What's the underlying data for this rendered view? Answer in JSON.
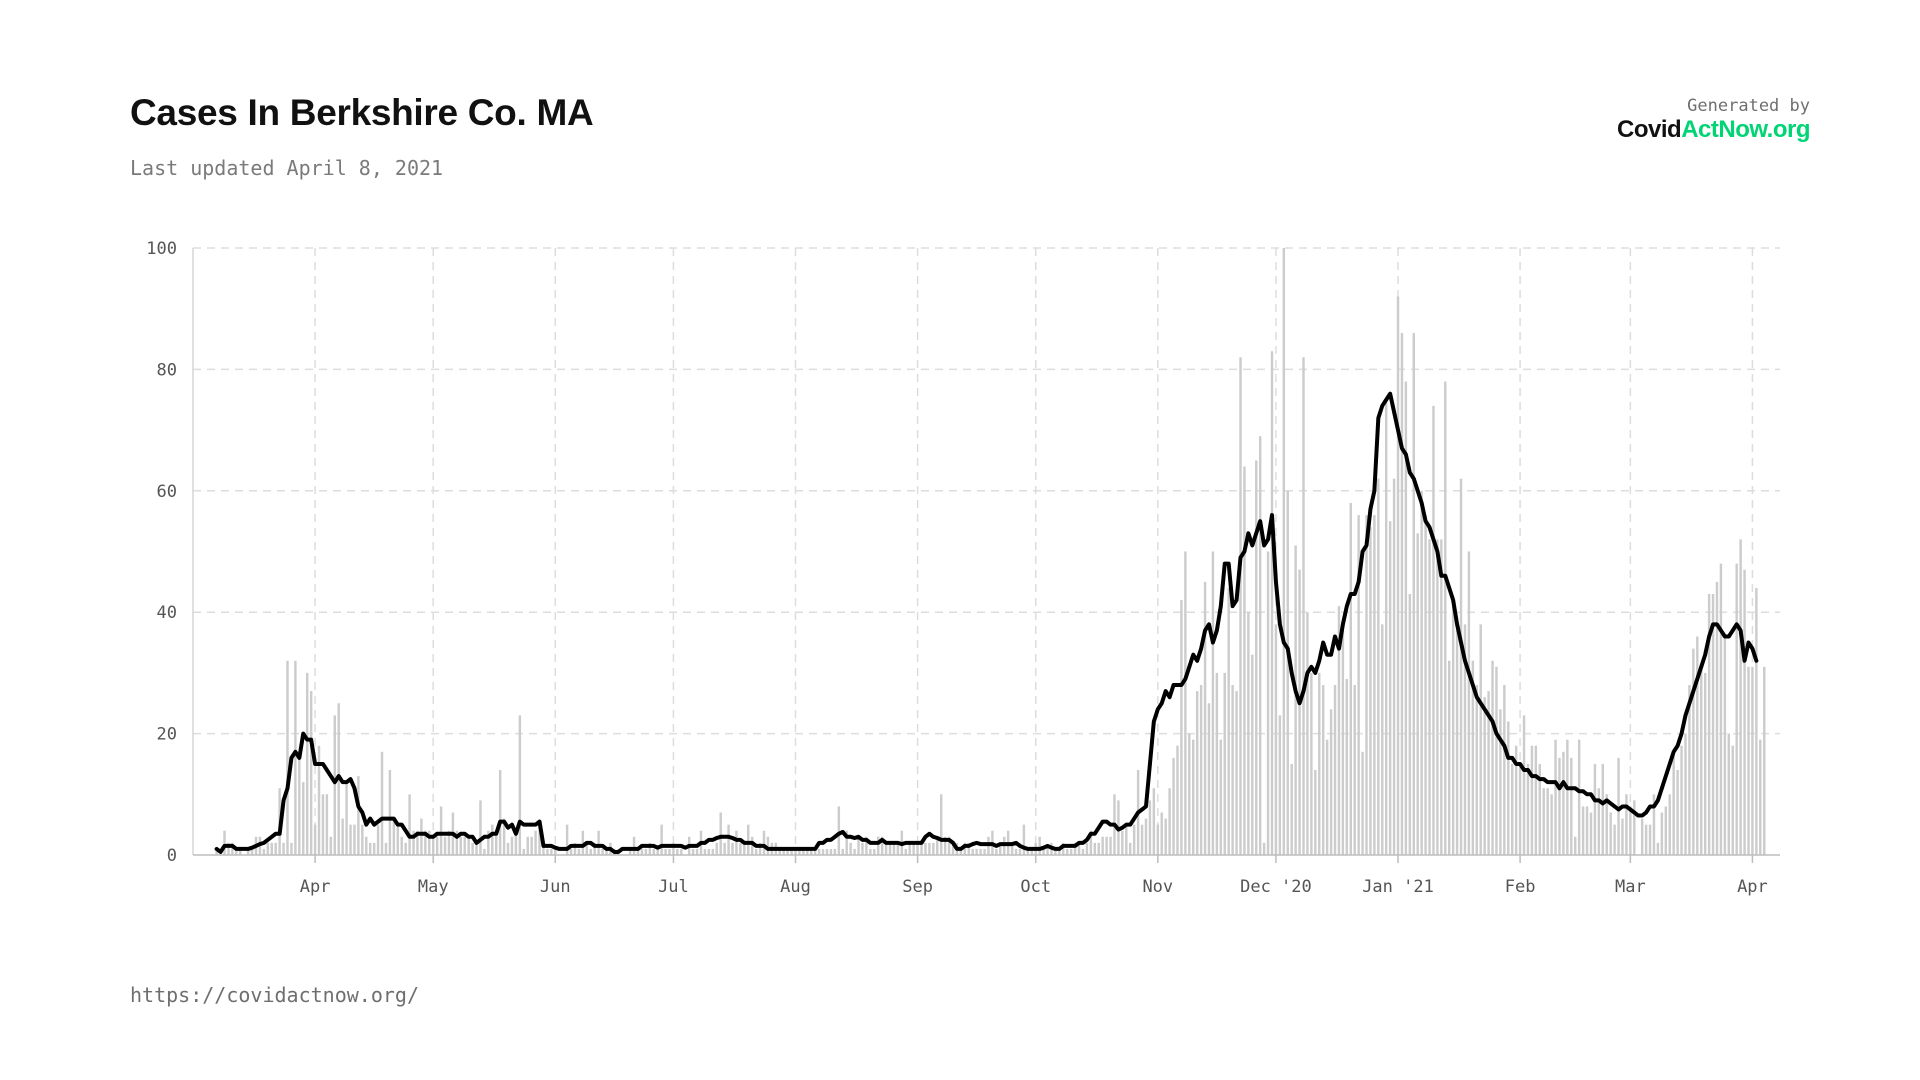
{
  "header": {
    "title": "Cases In Berkshire Co. MA",
    "updated": "Last updated April 8, 2021"
  },
  "brand": {
    "generated_by": "Generated by",
    "name_part1": "Covid",
    "name_part2": "ActNow.org"
  },
  "footer": {
    "source_url": "https://covidactnow.org/"
  },
  "colors": {
    "bar": "#cccccc",
    "line": "#000000",
    "grid": "#dddddd",
    "brand_accent": "#00d474"
  },
  "chart_data": {
    "type": "bar",
    "title": "Cases In Berkshire Co. MA",
    "xlabel": "",
    "ylabel": "",
    "x_range": [
      "2020-03-01",
      "2021-04-08"
    ],
    "ylim": [
      0,
      100
    ],
    "grid": true,
    "legend": "none",
    "y_ticks": [
      0,
      20,
      40,
      60,
      80,
      100
    ],
    "x_ticks": [
      {
        "date": "2020-04-01",
        "label": "Apr"
      },
      {
        "date": "2020-05-01",
        "label": "May"
      },
      {
        "date": "2020-06-01",
        "label": "Jun"
      },
      {
        "date": "2020-07-01",
        "label": "Jul"
      },
      {
        "date": "2020-08-01",
        "label": "Aug"
      },
      {
        "date": "2020-09-01",
        "label": "Sep"
      },
      {
        "date": "2020-10-01",
        "label": "Oct"
      },
      {
        "date": "2020-11-01",
        "label": "Nov"
      },
      {
        "date": "2020-12-01",
        "label": "Dec '20"
      },
      {
        "date": "2021-01-01",
        "label": "Jan '21"
      },
      {
        "date": "2021-02-01",
        "label": "Feb"
      },
      {
        "date": "2021-03-01",
        "label": "Mar"
      },
      {
        "date": "2021-04-01",
        "label": "Apr"
      }
    ],
    "series": [
      {
        "kind": "bars",
        "start_date": "2020-03-07",
        "values": [
          1,
          0,
          4,
          2,
          2,
          1,
          1,
          0,
          1,
          1,
          3,
          3,
          1,
          2,
          2,
          2,
          11,
          2,
          32,
          2,
          32,
          16,
          12,
          30,
          27,
          5,
          18,
          10,
          10,
          3,
          23,
          25,
          6,
          12,
          5,
          5,
          13,
          5,
          3,
          2,
          2,
          5,
          17,
          2,
          14,
          6,
          5,
          3,
          2,
          10,
          4,
          4,
          6,
          4,
          4,
          3,
          3,
          8,
          3,
          4,
          7,
          4,
          3,
          3,
          3,
          2,
          2,
          9,
          1,
          4,
          5,
          4,
          14,
          6,
          2,
          3,
          4,
          23,
          1,
          3,
          3,
          4,
          5,
          2,
          1,
          1,
          1,
          0,
          0,
          5,
          1,
          2,
          1,
          4,
          2,
          1,
          2,
          4,
          1,
          1,
          2,
          1,
          1,
          0,
          0,
          1,
          3,
          1,
          1,
          1,
          2,
          1,
          1,
          5,
          1,
          1,
          2,
          1,
          1,
          0,
          3,
          1,
          1,
          4,
          1,
          1,
          1,
          2,
          7,
          2,
          5,
          2,
          4,
          2,
          2,
          5,
          3,
          1,
          2,
          4,
          3,
          2,
          2,
          1,
          1,
          1,
          1,
          1,
          1,
          1,
          1,
          1,
          1,
          1,
          1,
          1,
          1,
          1,
          8,
          1,
          4,
          2,
          1,
          3,
          2,
          3,
          1,
          1,
          3,
          3,
          2,
          2,
          2,
          2,
          4,
          1,
          2,
          2,
          2,
          2,
          2,
          2,
          2,
          3,
          10,
          3,
          3,
          2,
          2,
          1,
          2,
          2,
          1,
          1,
          1,
          1,
          3,
          4,
          1,
          2,
          3,
          4,
          2,
          1,
          1,
          5,
          1,
          1,
          2,
          3,
          1,
          1,
          2,
          1,
          1,
          2,
          1,
          1,
          2,
          2,
          1,
          2,
          4,
          2,
          2,
          3,
          3,
          3,
          10,
          9,
          4,
          5,
          2,
          5,
          14,
          5,
          6,
          9,
          11,
          5,
          7,
          6,
          11,
          16,
          18,
          42,
          50,
          20,
          19,
          27,
          28,
          45,
          25,
          50,
          30,
          19,
          30,
          44,
          28,
          27,
          82,
          64,
          40,
          33,
          65,
          69,
          2,
          50,
          83,
          38,
          23,
          100,
          60,
          15,
          51,
          47,
          82,
          40,
          30,
          14,
          30,
          28,
          19,
          24,
          28,
          41,
          38,
          29,
          58,
          28,
          56,
          17,
          56,
          54,
          56,
          62,
          38,
          75,
          55,
          62,
          92,
          86,
          78,
          43,
          86,
          53,
          60,
          56,
          52,
          74,
          52,
          52,
          78,
          32,
          41,
          38,
          62,
          38,
          50,
          32,
          28,
          38,
          26,
          27,
          32,
          31,
          24,
          28,
          22,
          15,
          18,
          15,
          23,
          15,
          18,
          18,
          15,
          11,
          11,
          10,
          19,
          16,
          17,
          19,
          16,
          3,
          19,
          8,
          8,
          7,
          15,
          11,
          15,
          10,
          7,
          5,
          16,
          6,
          10,
          8,
          9,
          0,
          6,
          5,
          5,
          10,
          2,
          7,
          8,
          10,
          17,
          14,
          18,
          20,
          28,
          34,
          36,
          31,
          30,
          43,
          43,
          45,
          48,
          36,
          20,
          18,
          48,
          52,
          47,
          31,
          31,
          44,
          19,
          31
        ]
      },
      {
        "kind": "line",
        "start_date": "2020-03-07",
        "values": [
          1,
          0.5,
          1.5,
          1.5,
          1.5,
          1,
          1,
          1,
          1,
          1.2,
          1.5,
          1.8,
          2,
          2.5,
          3,
          3.5,
          3.5,
          9,
          11,
          16,
          17,
          16,
          20,
          19,
          19,
          15,
          15,
          15,
          14,
          13,
          12,
          13,
          12,
          12,
          12.5,
          11,
          8,
          7,
          5,
          6,
          5,
          5.5,
          6,
          6,
          6,
          6,
          5,
          5,
          4,
          3,
          3,
          3.5,
          3.5,
          3.5,
          3,
          3,
          3.5,
          3.5,
          3.5,
          3.5,
          3.5,
          3,
          3.5,
          3.5,
          3,
          3,
          2,
          2.5,
          3,
          3,
          3.5,
          3.5,
          5.5,
          5.5,
          4.5,
          5,
          3.5,
          5.5,
          5,
          5,
          5,
          5,
          5.5,
          1.5,
          1.5,
          1.5,
          1.2,
          1,
          1,
          1,
          1.5,
          1.5,
          1.5,
          1.5,
          2,
          2,
          1.5,
          1.5,
          1.5,
          1,
          1,
          0.5,
          0.5,
          1,
          1,
          1,
          1,
          1,
          1.5,
          1.5,
          1.5,
          1.5,
          1.2,
          1.5,
          1.5,
          1.5,
          1.5,
          1.5,
          1.5,
          1.2,
          1.5,
          1.5,
          1.5,
          2,
          2,
          2.5,
          2.5,
          2.8,
          3,
          3,
          3,
          2.8,
          2.5,
          2.5,
          2,
          2,
          2,
          1.5,
          1.5,
          1.5,
          1,
          1,
          1,
          1,
          1,
          1,
          1,
          1,
          1,
          1,
          1,
          1,
          1,
          2,
          2,
          2.5,
          2.5,
          3,
          3.5,
          3.8,
          3,
          3,
          2.8,
          3,
          2.5,
          2.5,
          2,
          2,
          2,
          2.5,
          2,
          2,
          2,
          2,
          1.8,
          2,
          2,
          2,
          2,
          2,
          3,
          3.5,
          3,
          2.8,
          2.5,
          2.5,
          2.5,
          2,
          1,
          1,
          1.5,
          1.5,
          1.8,
          2,
          1.8,
          1.8,
          1.8,
          1.8,
          1.5,
          1.8,
          1.8,
          1.8,
          1.8,
          2,
          1.5,
          1.2,
          1,
          1,
          1,
          1,
          1.2,
          1.5,
          1.2,
          1,
          1,
          1.5,
          1.5,
          1.5,
          1.5,
          2,
          2,
          2.5,
          3.5,
          3.5,
          4.5,
          5.5,
          5.5,
          5,
          5,
          4.2,
          4.5,
          5,
          5,
          6,
          7,
          7.5,
          8,
          15,
          22,
          24,
          25,
          27,
          26,
          28,
          28,
          28,
          29,
          31,
          33,
          32,
          34,
          37,
          38,
          35,
          37,
          41,
          48,
          48,
          41,
          42,
          49,
          50,
          53,
          51,
          53,
          55,
          51,
          52,
          56,
          45,
          38,
          35,
          34,
          30,
          27,
          25,
          27,
          30,
          31,
          30,
          32,
          35,
          33,
          33,
          36,
          34,
          38,
          41,
          43,
          43,
          45,
          50,
          51,
          57,
          60,
          72,
          74,
          75,
          76,
          73,
          70,
          67,
          66,
          63,
          62,
          60,
          58,
          55,
          54,
          52,
          50,
          46,
          46,
          44,
          42,
          38,
          35,
          32,
          30,
          28,
          26,
          25,
          24,
          23,
          22,
          20,
          19,
          18,
          16,
          16,
          15,
          15,
          14,
          14,
          13,
          13,
          12.5,
          12.5,
          12,
          12,
          12,
          11,
          12,
          11,
          11,
          11,
          10.5,
          10.5,
          10,
          10,
          9,
          9,
          8.5,
          9,
          8.5,
          8,
          7.5,
          8,
          8,
          7.5,
          7,
          6.5,
          6.5,
          7,
          8,
          8,
          9,
          11,
          13,
          15,
          17,
          18,
          20,
          23,
          25,
          27,
          29,
          31,
          33,
          36,
          38,
          38,
          37,
          36,
          36,
          37,
          38,
          37,
          32,
          35,
          34,
          32
        ]
      }
    ]
  }
}
